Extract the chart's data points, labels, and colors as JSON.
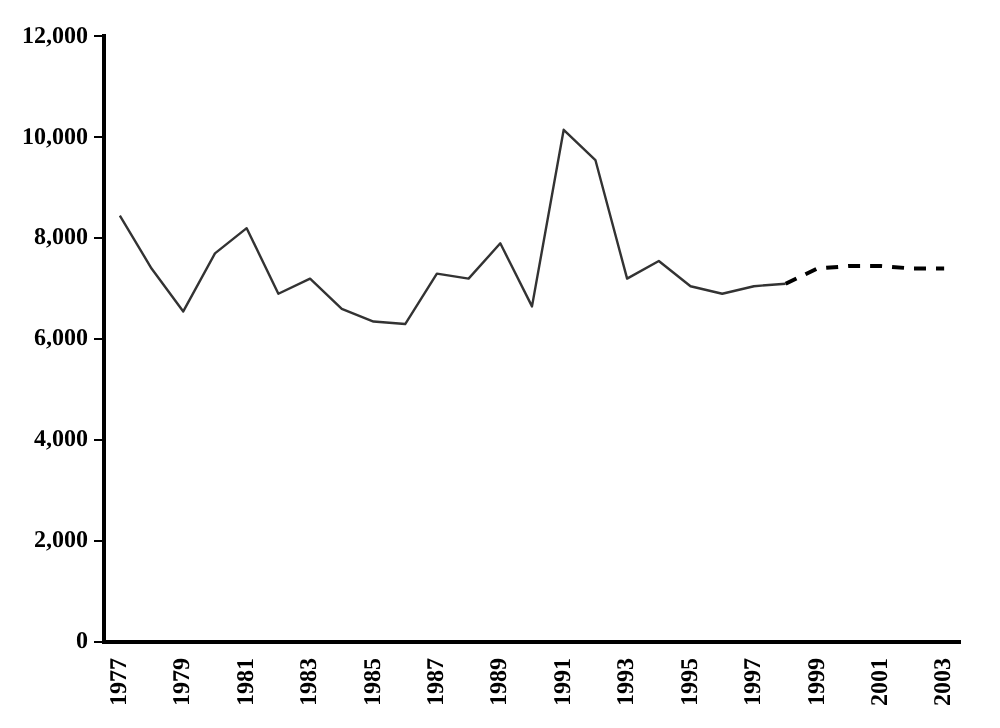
{
  "chart_data": {
    "type": "line",
    "categories": [
      "1977",
      null,
      "1979",
      null,
      "1981",
      null,
      "1983",
      null,
      "1985",
      null,
      "1987",
      null,
      "1989",
      null,
      "1991",
      null,
      "1993",
      null,
      "1995",
      null,
      "1997",
      null,
      "1999",
      null,
      "2001",
      null,
      "2003"
    ],
    "series": [
      {
        "color": "#333333",
        "line_style": "solid",
        "values": [
          8450,
          7400,
          6550,
          7700,
          8200,
          6900,
          7200,
          6600,
          6350,
          6300,
          7300,
          7200,
          7900,
          6650,
          10150,
          9550,
          7200,
          7550,
          7050,
          6900,
          7050,
          7100,
          null,
          null,
          null,
          null,
          null
        ]
      },
      {
        "color": "#000000",
        "line_style": "dashed",
        "values": [
          null,
          null,
          null,
          null,
          null,
          null,
          null,
          null,
          null,
          null,
          null,
          null,
          null,
          null,
          null,
          null,
          null,
          null,
          null,
          null,
          null,
          7100,
          7400,
          7450,
          7450,
          7400,
          7400
        ]
      }
    ],
    "ylim": [
      0,
      12000
    ],
    "yticks": [
      {
        "value": 0,
        "label": "0"
      },
      {
        "value": 2000,
        "label": "2,000"
      },
      {
        "value": 4000,
        "label": "4,000"
      },
      {
        "value": 6000,
        "label": "6,000"
      },
      {
        "value": 8000,
        "label": "8,000"
      },
      {
        "value": 10000,
        "label": "10,000"
      },
      {
        "value": 12000,
        "label": "12,000"
      }
    ],
    "grid": false,
    "legend": false,
    "marker": "none"
  }
}
